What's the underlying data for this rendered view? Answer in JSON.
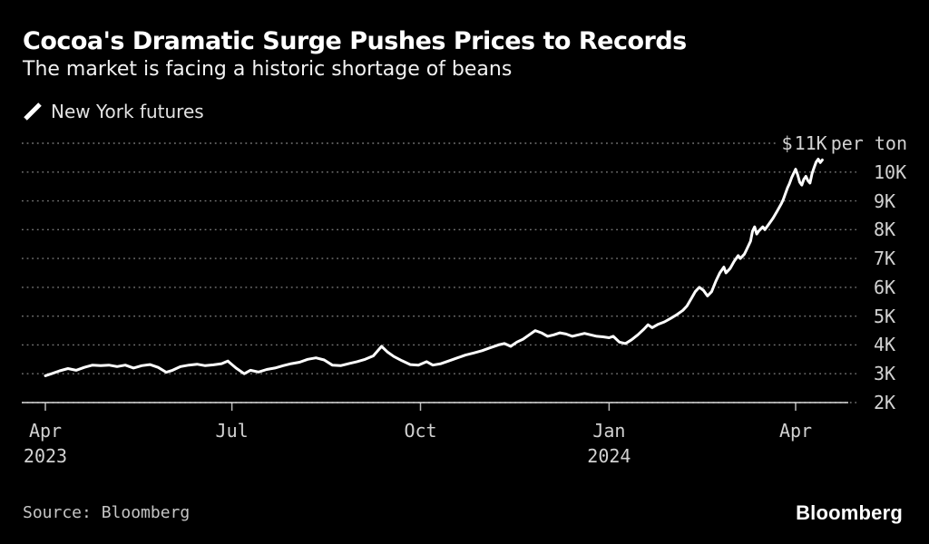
{
  "header": {
    "title": "Cocoa's Dramatic Surge Pushes Prices to Records",
    "subtitle": "The market is facing a historic shortage of beans"
  },
  "legend": {
    "label": "New York futures"
  },
  "footer": {
    "source": "Source: Bloomberg",
    "logo": "Bloomberg"
  },
  "colors": {
    "background": "#000000",
    "line": "#ffffff",
    "grid": "#777777",
    "axis": "#dddddd",
    "tick": "#bbbbbb"
  },
  "chart_data": {
    "type": "line",
    "title": "Cocoa's Dramatic Surge Pushes Prices to Records",
    "subtitle": "The market is facing a historic shortage of beans",
    "series_name": "New York futures",
    "ylabel": "$ per ton",
    "ylim": [
      2000,
      11000
    ],
    "grid": "dotted-horizontal",
    "legend_position": "top-left",
    "y_ticks": [
      {
        "value": 11000,
        "prefix": "$",
        "label": "11K",
        "unit": "per ton"
      },
      {
        "value": 10000,
        "label": "10K"
      },
      {
        "value": 9000,
        "label": "9K"
      },
      {
        "value": 8000,
        "label": "8K"
      },
      {
        "value": 7000,
        "label": "7K"
      },
      {
        "value": 6000,
        "label": "6K"
      },
      {
        "value": 5000,
        "label": "5K"
      },
      {
        "value": 4000,
        "label": "4K"
      },
      {
        "value": 3000,
        "label": "3K"
      },
      {
        "value": 2000,
        "label": "2K"
      }
    ],
    "x_ticks": [
      {
        "date": "2023-04-01",
        "label": "Apr",
        "year": "2023"
      },
      {
        "date": "2023-07-01",
        "label": "Jul"
      },
      {
        "date": "2023-10-01",
        "label": "Oct"
      },
      {
        "date": "2024-01-01",
        "label": "Jan",
        "year": "2024"
      },
      {
        "date": "2024-04-01",
        "label": "Apr"
      }
    ],
    "x_range": [
      "2023-04-01",
      "2024-04-14"
    ],
    "points": [
      [
        "2023-04-01",
        2930
      ],
      [
        "2023-04-04",
        3000
      ],
      [
        "2023-04-08",
        3100
      ],
      [
        "2023-04-12",
        3180
      ],
      [
        "2023-04-16",
        3120
      ],
      [
        "2023-04-20",
        3220
      ],
      [
        "2023-04-24",
        3300
      ],
      [
        "2023-04-28",
        3280
      ],
      [
        "2023-05-02",
        3300
      ],
      [
        "2023-05-06",
        3250
      ],
      [
        "2023-05-10",
        3300
      ],
      [
        "2023-05-14",
        3200
      ],
      [
        "2023-05-18",
        3280
      ],
      [
        "2023-05-22",
        3320
      ],
      [
        "2023-05-26",
        3220
      ],
      [
        "2023-05-30",
        3050
      ],
      [
        "2023-06-02",
        3120
      ],
      [
        "2023-06-06",
        3250
      ],
      [
        "2023-06-10",
        3300
      ],
      [
        "2023-06-14",
        3330
      ],
      [
        "2023-06-18",
        3280
      ],
      [
        "2023-06-22",
        3310
      ],
      [
        "2023-06-26",
        3350
      ],
      [
        "2023-06-29",
        3440
      ],
      [
        "2023-07-03",
        3200
      ],
      [
        "2023-07-07",
        3000
      ],
      [
        "2023-07-10",
        3120
      ],
      [
        "2023-07-14",
        3060
      ],
      [
        "2023-07-18",
        3150
      ],
      [
        "2023-07-22",
        3200
      ],
      [
        "2023-07-26",
        3280
      ],
      [
        "2023-07-30",
        3350
      ],
      [
        "2023-08-03",
        3400
      ],
      [
        "2023-08-07",
        3500
      ],
      [
        "2023-08-11",
        3550
      ],
      [
        "2023-08-15",
        3480
      ],
      [
        "2023-08-19",
        3300
      ],
      [
        "2023-08-23",
        3280
      ],
      [
        "2023-08-27",
        3350
      ],
      [
        "2023-08-31",
        3420
      ],
      [
        "2023-09-04",
        3500
      ],
      [
        "2023-09-08",
        3620
      ],
      [
        "2023-09-12",
        3950
      ],
      [
        "2023-09-15",
        3750
      ],
      [
        "2023-09-18",
        3600
      ],
      [
        "2023-09-22",
        3450
      ],
      [
        "2023-09-26",
        3320
      ],
      [
        "2023-09-30",
        3300
      ],
      [
        "2023-10-04",
        3420
      ],
      [
        "2023-10-07",
        3300
      ],
      [
        "2023-10-11",
        3350
      ],
      [
        "2023-10-15",
        3450
      ],
      [
        "2023-10-19",
        3550
      ],
      [
        "2023-10-23",
        3650
      ],
      [
        "2023-10-27",
        3720
      ],
      [
        "2023-10-31",
        3800
      ],
      [
        "2023-11-04",
        3900
      ],
      [
        "2023-11-08",
        4000
      ],
      [
        "2023-11-11",
        4050
      ],
      [
        "2023-11-14",
        3950
      ],
      [
        "2023-11-17",
        4100
      ],
      [
        "2023-11-20",
        4200
      ],
      [
        "2023-11-23",
        4350
      ],
      [
        "2023-11-26",
        4500
      ],
      [
        "2023-11-29",
        4420
      ],
      [
        "2023-12-02",
        4300
      ],
      [
        "2023-12-05",
        4350
      ],
      [
        "2023-12-08",
        4420
      ],
      [
        "2023-12-11",
        4380
      ],
      [
        "2023-12-14",
        4300
      ],
      [
        "2023-12-17",
        4350
      ],
      [
        "2023-12-20",
        4400
      ],
      [
        "2023-12-23",
        4350
      ],
      [
        "2023-12-26",
        4300
      ],
      [
        "2023-12-29",
        4280
      ],
      [
        "2024-01-01",
        4250
      ],
      [
        "2024-01-03",
        4300
      ],
      [
        "2024-01-06",
        4100
      ],
      [
        "2024-01-09",
        4050
      ],
      [
        "2024-01-12",
        4180
      ],
      [
        "2024-01-15",
        4350
      ],
      [
        "2024-01-18",
        4550
      ],
      [
        "2024-01-20",
        4700
      ],
      [
        "2024-01-22",
        4600
      ],
      [
        "2024-01-25",
        4720
      ],
      [
        "2024-01-28",
        4800
      ],
      [
        "2024-01-31",
        4920
      ],
      [
        "2024-02-03",
        5050
      ],
      [
        "2024-02-06",
        5200
      ],
      [
        "2024-02-08",
        5350
      ],
      [
        "2024-02-10",
        5600
      ],
      [
        "2024-02-12",
        5850
      ],
      [
        "2024-02-14",
        6000
      ],
      [
        "2024-02-16",
        5900
      ],
      [
        "2024-02-18",
        5700
      ],
      [
        "2024-02-20",
        5850
      ],
      [
        "2024-02-22",
        6200
      ],
      [
        "2024-02-24",
        6500
      ],
      [
        "2024-02-26",
        6700
      ],
      [
        "2024-02-27",
        6500
      ],
      [
        "2024-02-29",
        6650
      ],
      [
        "2024-03-02",
        6900
      ],
      [
        "2024-03-04",
        7100
      ],
      [
        "2024-03-05",
        7000
      ],
      [
        "2024-03-07",
        7150
      ],
      [
        "2024-03-08",
        7300
      ],
      [
        "2024-03-10",
        7600
      ],
      [
        "2024-03-11",
        7950
      ],
      [
        "2024-03-12",
        8100
      ],
      [
        "2024-03-13",
        7850
      ],
      [
        "2024-03-14",
        7950
      ],
      [
        "2024-03-16",
        8100
      ],
      [
        "2024-03-17",
        8000
      ],
      [
        "2024-03-19",
        8200
      ],
      [
        "2024-03-21",
        8400
      ],
      [
        "2024-03-23",
        8650
      ],
      [
        "2024-03-25",
        8900
      ],
      [
        "2024-03-26",
        9050
      ],
      [
        "2024-03-27",
        9250
      ],
      [
        "2024-03-28",
        9450
      ],
      [
        "2024-03-29",
        9600
      ],
      [
        "2024-03-30",
        9800
      ],
      [
        "2024-03-31",
        9950
      ],
      [
        "2024-04-01",
        10100
      ],
      [
        "2024-04-02",
        9900
      ],
      [
        "2024-04-03",
        9650
      ],
      [
        "2024-04-04",
        9550
      ],
      [
        "2024-04-05",
        9750
      ],
      [
        "2024-04-06",
        9850
      ],
      [
        "2024-04-07",
        9700
      ],
      [
        "2024-04-08",
        9620
      ],
      [
        "2024-04-09",
        9950
      ],
      [
        "2024-04-10",
        10150
      ],
      [
        "2024-04-11",
        10350
      ],
      [
        "2024-04-12",
        10450
      ],
      [
        "2024-04-13",
        10330
      ],
      [
        "2024-04-14",
        10420
      ]
    ]
  }
}
